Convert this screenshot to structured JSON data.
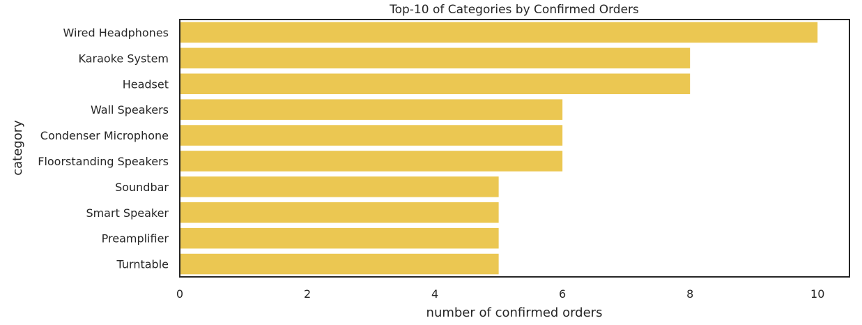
{
  "chart_data": {
    "type": "bar",
    "orientation": "horizontal",
    "title": "Top-10 of Categories by Confirmed Orders",
    "xlabel": "number of confirmed orders",
    "ylabel": "category",
    "categories": [
      "Wired Headphones",
      "Karaoke System",
      "Headset",
      "Wall Speakers",
      "Condenser Microphone",
      "Floorstanding Speakers",
      "Soundbar",
      "Smart Speaker",
      "Preamplifier",
      "Turntable"
    ],
    "values": [
      10,
      8,
      8,
      6,
      6,
      6,
      5,
      5,
      5,
      5
    ],
    "xlim": [
      0,
      10.5
    ],
    "xticks": [
      0,
      2,
      4,
      6,
      8,
      10
    ],
    "grid": false,
    "bar_color": "#ebc752",
    "frame_color": "#262626"
  }
}
